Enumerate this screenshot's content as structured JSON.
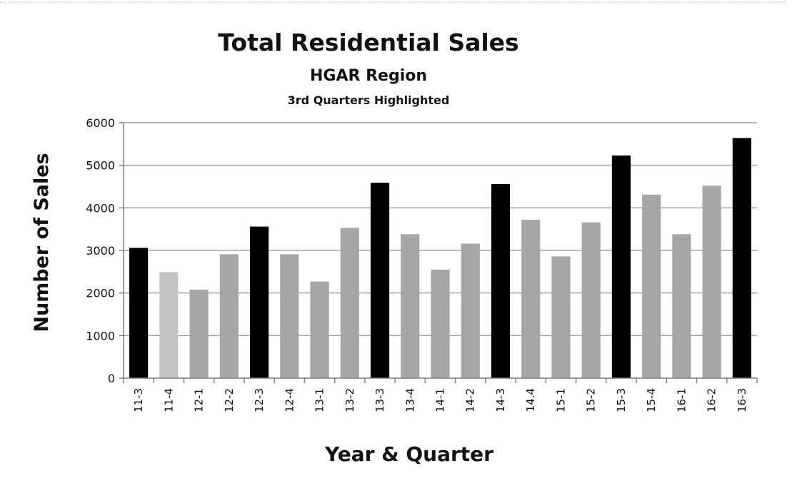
{
  "chart_data": {
    "type": "bar",
    "title": "Total Residential Sales",
    "subtitle": "HGAR Region",
    "subtitle2": "3rd Quarters Highlighted",
    "xlabel": "Year & Quarter",
    "ylabel": "Number of Sales",
    "ylim": [
      0,
      6000
    ],
    "yticks": [
      "0",
      "1000",
      "2000",
      "3000",
      "4000",
      "5000",
      "6000"
    ],
    "grid": true,
    "legend": "none",
    "categories": [
      "11-3",
      "11-4",
      "12-1",
      "12-2",
      "12-3",
      "12-4",
      "13-1",
      "13-2",
      "13-3",
      "13-4",
      "14-1",
      "14-2",
      "14-3",
      "14.4",
      "15-1",
      "15-2",
      "15-3",
      "15-4",
      "16-1",
      "16-2",
      "16-3"
    ],
    "values": [
      3060,
      2490,
      2080,
      2910,
      3560,
      2910,
      2270,
      3530,
      4590,
      3380,
      2550,
      3160,
      4560,
      3720,
      2860,
      3660,
      5230,
      4310,
      3380,
      4520,
      5640
    ],
    "highlight": [
      true,
      false,
      false,
      false,
      true,
      false,
      false,
      false,
      true,
      false,
      false,
      false,
      true,
      false,
      false,
      false,
      true,
      false,
      false,
      false,
      true
    ],
    "colors": {
      "highlight": "#000000",
      "normal": "#a6a6a6",
      "light": "#c4c4c4",
      "grid": "#a0a0a0",
      "axis": "#7f7f7f"
    },
    "light_index": 1
  }
}
